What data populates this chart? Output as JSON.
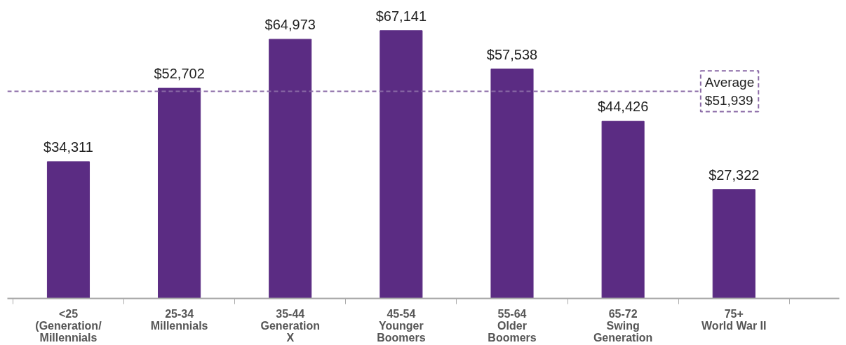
{
  "chart_data": {
    "type": "bar",
    "categories": [
      "<25\n(Generation/\nMillennials",
      "25-34\nMillennials",
      "35-44\nGeneration\nX",
      "45-54\nYounger\nBoomers",
      "55-64\nOlder\nBoomers",
      "65-72\nSwing\nGeneration",
      "75+\nWorld War II"
    ],
    "values": [
      34311,
      52702,
      64973,
      67141,
      57538,
      44426,
      27322
    ],
    "value_labels": [
      "$34,311",
      "$52,702",
      "$64,973",
      "$67,141",
      "$57,538",
      "$44,426",
      "$27,322"
    ],
    "color": "#5b2c83",
    "ref_lines": [
      {
        "axis": "y",
        "value": 51939,
        "label": "Average\n$51,939",
        "color": "#8a6aa6",
        "line_style": "dashed"
      }
    ],
    "grid": false
  }
}
